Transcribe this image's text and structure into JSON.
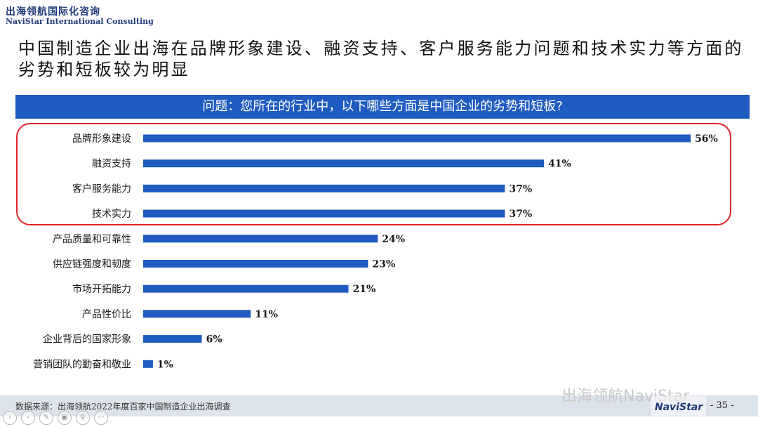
{
  "brand": {
    "name_cn": "出海领航国际化咨询",
    "name_en": "NaviStar International Consulting"
  },
  "headline": "中国制造企业出海在品牌形象建设、融资支持、客户服务能力问题和技术实力等方面的劣势和短板较为明显",
  "question": "问题：您所在的行业中，以下哪些方面是中国企业的劣势和短板?",
  "chart_data": {
    "type": "bar",
    "orientation": "horizontal",
    "categories": [
      "品牌形象建设",
      "融资支持",
      "客户服务能力",
      "技术实力",
      "产品质量和可靠性",
      "供应链强度和韧度",
      "市场开拓能力",
      "产品性价比",
      "企业背后的国家形象",
      "营销团队的勤奋和敬业"
    ],
    "values": [
      56,
      41,
      37,
      37,
      24,
      23,
      21,
      11,
      6,
      1
    ],
    "value_labels": [
      "56%",
      "41%",
      "37%",
      "37%",
      "24%",
      "23%",
      "21%",
      "11%",
      "6%",
      "1%"
    ],
    "unit": "%",
    "xlim": [
      0,
      56
    ],
    "highlighted_count": 4,
    "bar_color": "#1f5bc0",
    "highlight_color": "#e0232b",
    "grid": false,
    "legend": "none"
  },
  "footer": {
    "source": "数据来源：出海领航2022年度百家中国制造企业出海调查",
    "watermark": "出海领航NaviStar",
    "logo_text": "NaviStar",
    "page_number": "- 35 -"
  },
  "nav_icons": [
    "prev-icon",
    "next-icon",
    "pen-icon",
    "slides-icon",
    "zoom-icon",
    "more-icon"
  ],
  "colors": {
    "accent": "#1f5bc0",
    "highlight": "#e0232b",
    "brand": "#1f3a7a"
  }
}
